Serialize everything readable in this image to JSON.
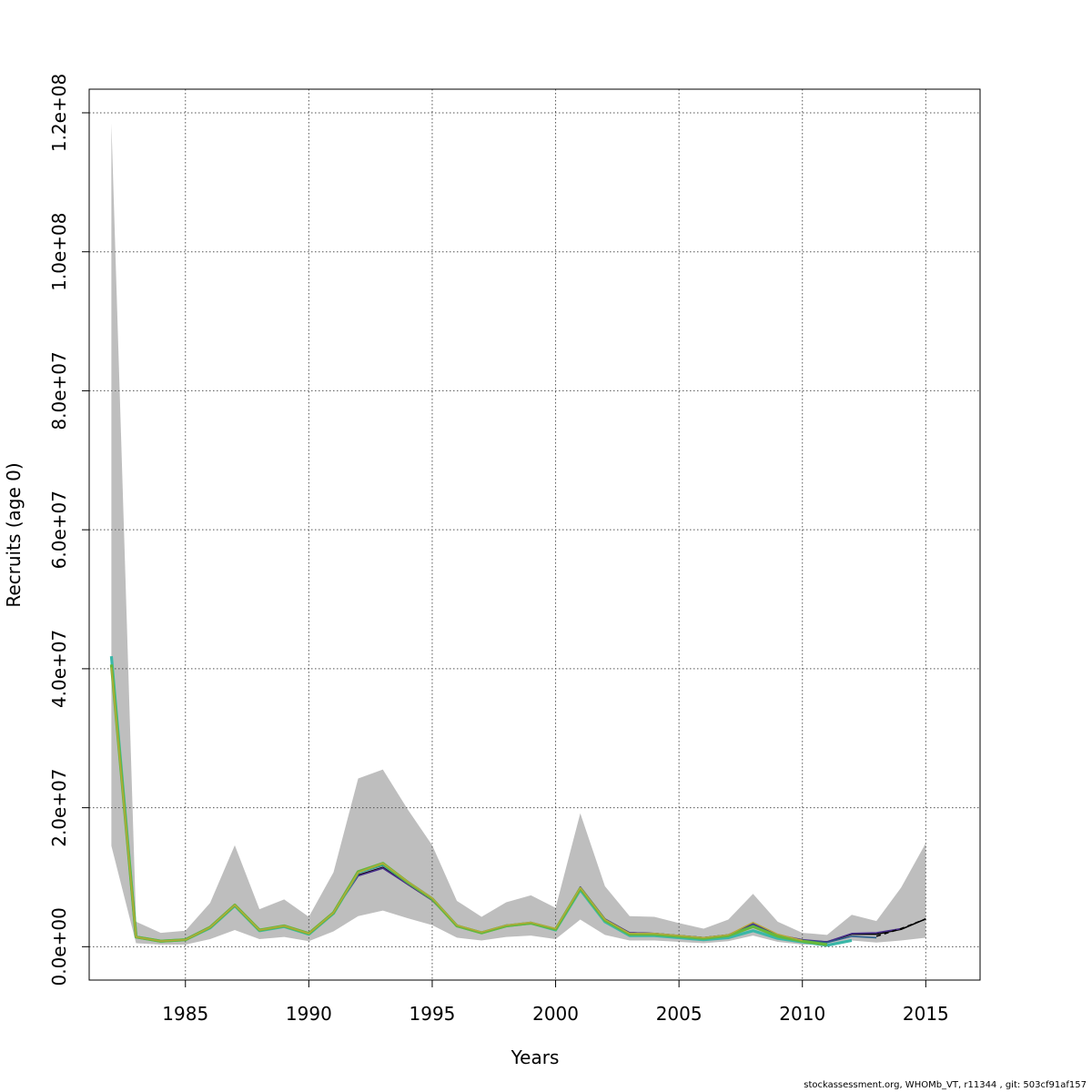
{
  "footer": "stockassessment.org, WHOMb_VT, r11344 , git: 503cf91af157",
  "chart_data": {
    "type": "line",
    "xlabel": "Years",
    "ylabel": "Recruits (age 0)",
    "xlim": [
      1981.1,
      2017.2
    ],
    "ylim": [
      -4800000,
      123400000
    ],
    "x_ticks": [
      1985,
      1990,
      1995,
      2000,
      2005,
      2010,
      2015
    ],
    "y_ticks": [
      0,
      20000000,
      40000000,
      60000000,
      80000000,
      100000000,
      120000000
    ],
    "y_tick_labels": [
      "0.0e+00",
      "2.0e+07",
      "4.0e+07",
      "6.0e+07",
      "8.0e+07",
      "1.0e+08",
      "1.2e+08"
    ],
    "grid": true,
    "colors": {
      "band": "#bebebe",
      "grid": "#555555",
      "retro_1": "#2b5f8c",
      "retro_2": "#3ab7a8",
      "retro_3": "#66b83a",
      "retro_4": "#b8a83a",
      "retro_5": "#4a2f8c",
      "base": "#000000"
    },
    "confidence_band": {
      "x": [
        1982,
        1983,
        1984,
        1985,
        1986,
        1987,
        1988,
        1989,
        1990,
        1991,
        1992,
        1993,
        1994,
        1995,
        1996,
        1997,
        1998,
        1999,
        2000,
        2001,
        2002,
        2003,
        2004,
        2005,
        2006,
        2007,
        2008,
        2009,
        2010,
        2011,
        2012,
        2013,
        2014,
        2015
      ],
      "upper": [
        118500000,
        3600000,
        2000000,
        2300000,
        6300000,
        14600000,
        5400000,
        6800000,
        4300000,
        10700000,
        24200000,
        25500000,
        19800000,
        14600000,
        6600000,
        4300000,
        6400000,
        7400000,
        5600000,
        19200000,
        8700000,
        4400000,
        4300000,
        3400000,
        2600000,
        3900000,
        7600000,
        3600000,
        2000000,
        1700000,
        4600000,
        3700000,
        8500000,
        14900000
      ],
      "lower": [
        14500000,
        500000,
        300000,
        300000,
        1100000,
        2400000,
        1100000,
        1400000,
        800000,
        2200000,
        4400000,
        5200000,
        4100000,
        3100000,
        1300000,
        900000,
        1400000,
        1600000,
        1100000,
        3900000,
        1700000,
        900000,
        900000,
        700000,
        500000,
        800000,
        1600000,
        700000,
        300000,
        300000,
        900000,
        600000,
        900000,
        1300000
      ]
    },
    "series": [
      {
        "x": [
          1982,
          1983,
          1984,
          1985,
          1986,
          1987,
          1988,
          1989,
          1990,
          1991,
          1992,
          1993,
          1994,
          1995,
          1996,
          1997,
          1998,
          1999,
          2000,
          2001,
          2002,
          2003,
          2004,
          2005,
          2006,
          2007,
          2008,
          2009,
          2010,
          2011,
          2012,
          2013,
          2014,
          2015
        ],
        "values": [
          41000000,
          1400000,
          800000,
          1000000,
          2800000,
          6000000,
          2400000,
          3000000,
          1900000,
          4900000,
          10300000,
          11400000,
          9000000,
          6700000,
          3000000,
          2000000,
          3000000,
          3400000,
          2500000,
          8500000,
          3900000,
          2000000,
          1900000,
          1600000,
          1300000,
          1700000,
          3200000,
          1700000,
          900000,
          700000,
          1800000,
          1800000,
          2500000,
          4000000
        ],
        "style": "base"
      },
      {
        "x": [
          1982,
          1983,
          1984,
          1985,
          1986,
          1987,
          1988,
          1989,
          1990,
          1991,
          1992,
          1993,
          1994,
          1995,
          1996,
          1997,
          1998,
          1999,
          2000,
          2001,
          2002,
          2003,
          2004,
          2005,
          2006,
          2007,
          2008,
          2009,
          2010,
          2011,
          2012,
          2013,
          2014
        ],
        "values": [
          40500000,
          1400000,
          800000,
          1000000,
          2800000,
          6000000,
          2400000,
          3000000,
          1900000,
          4900000,
          10200000,
          11300000,
          9000000,
          6700000,
          3000000,
          2000000,
          3000000,
          3400000,
          2500000,
          8600000,
          4000000,
          2000000,
          1900000,
          1600000,
          1300000,
          1700000,
          3300000,
          1700000,
          1000000,
          700000,
          1900000,
          2000000,
          2600000
        ],
        "style": "retro_5"
      },
      {
        "x": [
          1982,
          1983,
          1984,
          1985,
          1986,
          1987,
          1988,
          1989,
          1990,
          1991,
          1992,
          1993,
          1994,
          1995,
          1996,
          1997,
          1998,
          1999,
          2000,
          2001,
          2002,
          2003,
          2004,
          2005,
          2006,
          2007,
          2008,
          2009,
          2010,
          2011,
          2012,
          2013
        ],
        "values": [
          40800000,
          1400000,
          800000,
          1000000,
          2800000,
          6000000,
          2400000,
          3000000,
          1900000,
          4900000,
          10600000,
          11700000,
          9200000,
          6800000,
          3000000,
          2000000,
          3100000,
          3400000,
          2500000,
          8400000,
          3800000,
          1800000,
          1800000,
          1500000,
          1200000,
          1600000,
          3100000,
          1600000,
          900000,
          600000,
          1500000,
          1300000
        ],
        "style": "retro_1"
      },
      {
        "x": [
          1982,
          1983,
          1984,
          1985,
          1986,
          1987,
          1988,
          1989,
          1990,
          1991,
          1992,
          1993,
          1994,
          1995,
          1996,
          1997,
          1998,
          1999,
          2000,
          2001,
          2002,
          2003,
          2004,
          2005,
          2006,
          2007,
          2008,
          2009,
          2010,
          2011,
          2012
        ],
        "values": [
          41800000,
          1400000,
          800000,
          1000000,
          2700000,
          5900000,
          2300000,
          2900000,
          1800000,
          4800000,
          10700000,
          11900000,
          9300000,
          6900000,
          3000000,
          2000000,
          3000000,
          3400000,
          2400000,
          8200000,
          3600000,
          1600000,
          1600000,
          1300000,
          1000000,
          1300000,
          2300000,
          1200000,
          700000,
          200000,
          900000
        ],
        "style": "retro_2"
      },
      {
        "x": [
          1982,
          1983,
          1984,
          1985,
          1986,
          1987,
          1988,
          1989,
          1990,
          1991,
          1992,
          1993,
          1994,
          1995,
          1996,
          1997,
          1998,
          1999,
          2000,
          2001,
          2002,
          2003,
          2004,
          2005,
          2006,
          2007,
          2008,
          2009,
          2010,
          2011
        ],
        "values": [
          40600000,
          1400000,
          800000,
          1000000,
          2800000,
          6000000,
          2400000,
          3000000,
          1900000,
          4900000,
          10800000,
          12000000,
          9300000,
          6900000,
          3000000,
          2000000,
          3000000,
          3400000,
          2500000,
          8400000,
          3800000,
          1800000,
          1800000,
          1500000,
          1200000,
          1600000,
          2900000,
          1500000,
          800000,
          300000
        ],
        "style": "retro_3"
      },
      {
        "x": [
          1982,
          1983,
          1984,
          1985,
          1986,
          1987,
          1988,
          1989,
          1990,
          1991,
          1992,
          1993,
          1994,
          1995,
          1996,
          1997,
          1998,
          1999,
          2000,
          2001,
          2002,
          2003,
          2004,
          2005,
          2006,
          2007,
          2008,
          2009,
          2010
        ],
        "values": [
          40200000,
          1400000,
          800000,
          1000000,
          2800000,
          6000000,
          2400000,
          3000000,
          1900000,
          4900000,
          10700000,
          12000000,
          9400000,
          7000000,
          3100000,
          2100000,
          3100000,
          3500000,
          2600000,
          8500000,
          3900000,
          1900000,
          1900000,
          1600000,
          1300000,
          1700000,
          3500000,
          1800000,
          900000
        ],
        "style": "retro_4"
      }
    ],
    "dashed_segment": {
      "x": [
        2013,
        2014,
        2015
      ],
      "values": [
        1500000,
        2600000,
        4000000
      ]
    }
  }
}
